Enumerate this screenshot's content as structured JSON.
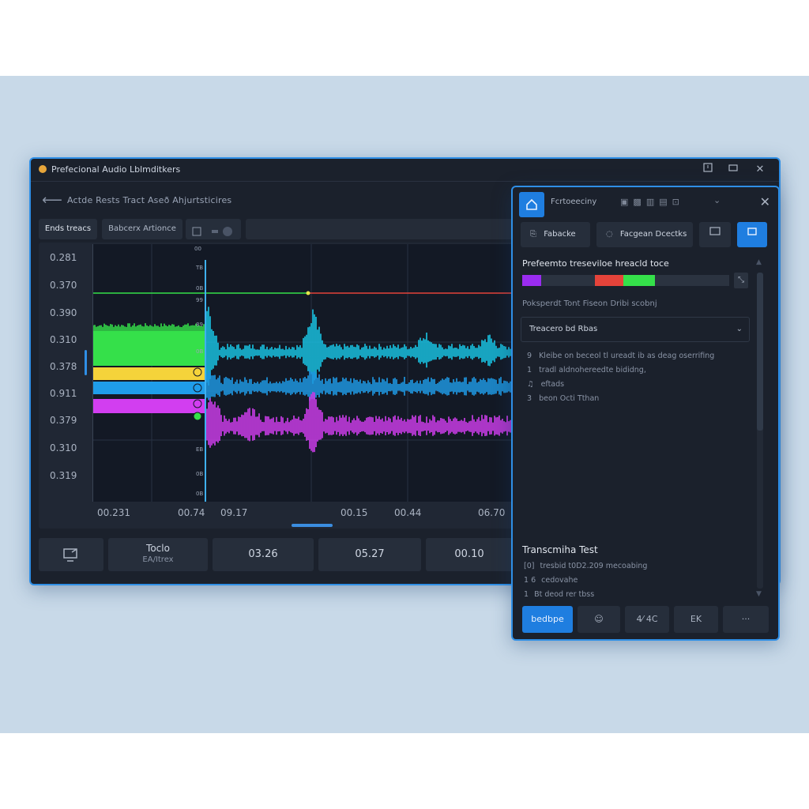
{
  "window": {
    "title": "Prefecional Audio Lblmditkers",
    "controls": [
      "restore",
      "minimize",
      "close"
    ]
  },
  "nav": {
    "breadcrumb": "Actde  Rests  Tract  Aseð  Ahjurtsticires"
  },
  "tabs": [
    {
      "label": "Ends treacs",
      "active": true
    },
    {
      "label": "Babcerx Artionce",
      "active": false
    },
    {
      "label": "",
      "icon": "toggle-icon",
      "active": false
    }
  ],
  "waveform": {
    "y_labels": [
      "0.281",
      "0.370",
      "0.390",
      "0.310",
      "0.378",
      "0.911",
      "0.379",
      "0.310",
      "0.319"
    ],
    "x_labels": [
      "00.231",
      "00.74",
      "09.17",
      "00.15",
      "00.44",
      "06.70"
    ],
    "tracks": [
      {
        "name": "green",
        "color": "#35e04a"
      },
      {
        "name": "cyan",
        "color": "#19c7e8"
      },
      {
        "name": "yellow",
        "color": "#f5d33a"
      },
      {
        "name": "blue",
        "color": "#1f9dea"
      },
      {
        "name": "magenta",
        "color": "#d23ef0"
      }
    ],
    "markers": [
      {
        "color": "#35e04a"
      },
      {
        "color": "#e5433a"
      }
    ]
  },
  "bottom_bar": {
    "icon": "screen-share-icon",
    "cells": [
      {
        "line1": "Toclo",
        "line2": "EA/Itrex"
      },
      {
        "line1": "03.26"
      },
      {
        "line1": "05.27"
      },
      {
        "line1": "00.10"
      }
    ]
  },
  "panel": {
    "title": "Fcrtoeeciny",
    "header_icons": [
      "copy-icon",
      "cut-icon",
      "trash-icon",
      "share-icon",
      "link-icon"
    ],
    "row": [
      {
        "label": "Fabacke",
        "icon": "doc-icon"
      },
      {
        "label": "Facgean Dcectks",
        "icon": "search-icon"
      },
      {
        "label": "",
        "icon": "monitor-icon"
      },
      {
        "label": "",
        "icon": "square-icon",
        "active": true
      }
    ],
    "section_title": "Prefeemto treseviloe hreacld toce",
    "meter": {
      "segments": [
        {
          "color": "#9a2cf0",
          "start": 0.0,
          "end": 0.09
        },
        {
          "color": "#e5433a",
          "start": 0.35,
          "end": 0.49
        },
        {
          "color": "#35e04a",
          "start": 0.49,
          "end": 0.64
        }
      ]
    },
    "meter_button": "⤡",
    "sub_label": "Poksperdt  Tont  Fiseon Dribi scobnj",
    "select_value": "Treacero bd Rbas",
    "list": [
      "Kleibe on beceol tl ureadt ib as deag oserrifing",
      "tradl aldnohereedte bididng,",
      "eftads",
      "beon Octi Tthan"
    ],
    "list_markers": [
      "9",
      "1",
      "♫",
      "3"
    ],
    "transcript_title": "Transcmiha Test",
    "transcript_lines": [
      "tresbid t0D2.209 mecoabing",
      "cedovahe",
      "Bt deod rer tbss"
    ],
    "transcript_markers": [
      "[0]",
      "1 6",
      "1"
    ],
    "buttons": [
      {
        "label": "bedbpe",
        "primary": true
      },
      {
        "label": "",
        "icon": "face-icon"
      },
      {
        "label": "4⁄ 4C",
        "icon": "text-icon"
      },
      {
        "label": "EK",
        "icon": "crop-icon"
      },
      {
        "label": "···",
        "icon": "more-icon"
      }
    ]
  },
  "colors": {
    "accent": "#2f8fe6",
    "bg": "#1b212c",
    "stage": "#c8d9e8"
  }
}
